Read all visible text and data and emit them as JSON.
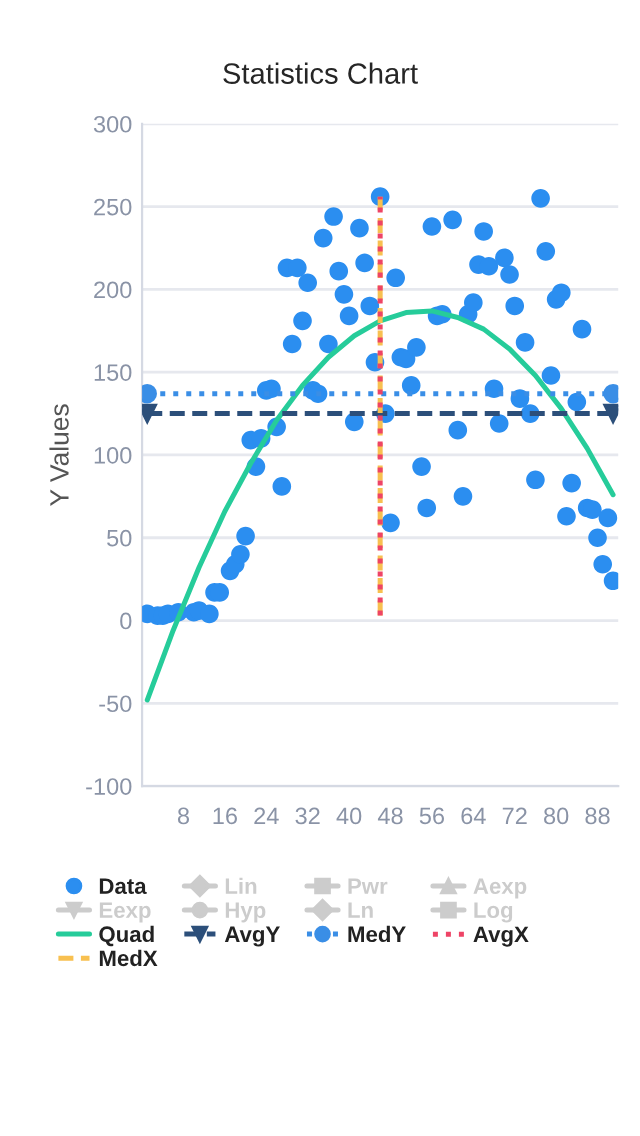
{
  "chart_data": {
    "type": "scatter",
    "title": "Statistics Chart",
    "ylabel": "Y Values",
    "xlim": [
      0,
      92
    ],
    "ylim": [
      -100,
      300
    ],
    "xticks": [
      8,
      16,
      24,
      32,
      40,
      48,
      56,
      64,
      72,
      80,
      88
    ],
    "yticks": [
      -100,
      -50,
      0,
      50,
      100,
      150,
      200,
      250,
      300
    ],
    "grid": "y",
    "legend": "bottom",
    "series": [
      {
        "name": "Data",
        "color": "#2b8ef0",
        "marker": "circle",
        "x": [
          1,
          3,
          4,
          5,
          7,
          10,
          11,
          13,
          14,
          15,
          17,
          18,
          19,
          20,
          21,
          22,
          23,
          24,
          25,
          26,
          27,
          28,
          29,
          30,
          31,
          32,
          33,
          34,
          35,
          36,
          37,
          38,
          39,
          40,
          41,
          42,
          43,
          44,
          45,
          46,
          47,
          48,
          49,
          50,
          51,
          52,
          53,
          54,
          55,
          56,
          57,
          58,
          60,
          61,
          62,
          63,
          64,
          65,
          66,
          67,
          68,
          69,
          70,
          71,
          72,
          73,
          74,
          75,
          76,
          77,
          78,
          79,
          80,
          81,
          82,
          83,
          84,
          85,
          86,
          87,
          88,
          89,
          90,
          91
        ],
        "values": [
          4,
          3,
          3,
          4,
          5,
          5,
          6,
          4,
          17,
          17,
          30,
          34,
          40,
          51,
          109,
          93,
          110,
          139,
          140,
          117,
          81,
          213,
          167,
          213,
          181,
          204,
          139,
          137,
          231,
          167,
          244,
          211,
          197,
          184,
          120,
          237,
          216,
          190,
          156,
          256,
          125,
          59,
          207,
          159,
          158,
          142,
          165,
          93,
          68,
          238,
          184,
          185,
          242,
          115,
          75,
          185,
          192,
          215,
          235,
          214,
          140,
          119,
          219,
          209,
          190,
          134,
          168,
          125,
          85,
          255,
          223,
          148,
          194,
          198,
          63,
          83,
          132,
          176,
          68,
          67,
          50,
          34,
          62,
          24
        ]
      },
      {
        "name": "Lin",
        "type": "line",
        "color": "#cccccc",
        "marker": "diamond"
      },
      {
        "name": "Pwr",
        "type": "line",
        "color": "#cccccc",
        "marker": "square"
      },
      {
        "name": "Aexp",
        "type": "line",
        "color": "#cccccc",
        "marker": "triangle"
      },
      {
        "name": "Eexp",
        "type": "line",
        "color": "#cccccc",
        "marker": "triangle_down"
      },
      {
        "name": "Hyp",
        "type": "line",
        "color": "#cccccc",
        "marker": "circle"
      },
      {
        "name": "Ln",
        "type": "line",
        "color": "#cccccc",
        "marker": "diamond"
      },
      {
        "name": "Log",
        "type": "line",
        "color": "#cccccc",
        "marker": "square"
      },
      {
        "name": "Quad",
        "type": "line",
        "color": "#26cc9a",
        "marker": "none",
        "line_style": "solid",
        "x": [
          1,
          6,
          11,
          16,
          21,
          26,
          31,
          36,
          41,
          46,
          51,
          56,
          61,
          66,
          71,
          76,
          81,
          86,
          91
        ],
        "values": [
          -48,
          -6,
          32,
          66,
          95,
          121,
          142,
          159,
          172,
          181,
          186,
          187,
          183,
          176,
          164,
          148,
          128,
          104,
          76
        ]
      },
      {
        "name": "AvgY",
        "type": "line",
        "color": "#2c4f7a",
        "marker": "triangle_down",
        "line_style": "dashed",
        "x": [
          1,
          91
        ],
        "values": [
          125,
          125
        ]
      },
      {
        "name": "MedY",
        "type": "line",
        "color": "#3a8ee6",
        "marker": "circle",
        "line_style": "dotted",
        "x": [
          1,
          91
        ],
        "values": [
          137,
          137
        ]
      },
      {
        "name": "AvgX",
        "type": "line",
        "color": "#ee4466",
        "marker": "none",
        "line_style": "dotted",
        "x": [
          46,
          46
        ],
        "values": [
          3,
          256
        ]
      },
      {
        "name": "MedX",
        "type": "line",
        "color": "#f8c050",
        "marker": "none",
        "line_style": "dashed",
        "x": [
          46,
          46
        ],
        "values": [
          3,
          256
        ]
      }
    ]
  }
}
